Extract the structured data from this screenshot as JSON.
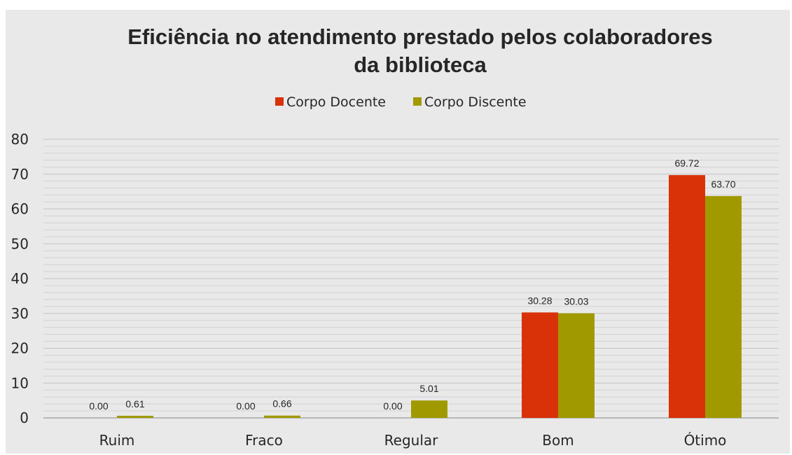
{
  "chart_data": {
    "type": "bar",
    "title": "Eficiência no atendimento prestado pelos colaboradores da biblioteca",
    "title_lines": [
      "Eficiência no atendimento prestado pelos colaboradores",
      "da biblioteca"
    ],
    "categories": [
      "Ruim",
      "Fraco",
      "Regular",
      "Bom",
      "Ótimo"
    ],
    "series": [
      {
        "name": "Corpo Docente",
        "color": "#d93108",
        "values": [
          0.0,
          0.0,
          0.0,
          30.28,
          69.72
        ],
        "labels": [
          "0.00",
          "0.00",
          "0.00",
          "30.28",
          "69.72"
        ]
      },
      {
        "name": "Corpo Discente",
        "color": "#a09a00",
        "values": [
          0.61,
          0.66,
          5.01,
          30.03,
          63.7
        ],
        "labels": [
          "0.61",
          "0.66",
          "5.01",
          "30.03",
          "63.70"
        ]
      }
    ],
    "ylim": [
      0,
      80
    ],
    "yticks": [
      "0",
      "10",
      "20",
      "30",
      "40",
      "50",
      "60",
      "70",
      "80"
    ],
    "grid": true,
    "legend_position": "top-center",
    "xlabel": "",
    "ylabel": ""
  }
}
